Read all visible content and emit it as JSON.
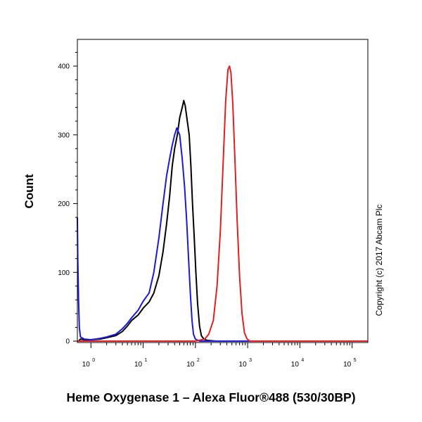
{
  "chart_data": {
    "type": "line",
    "title": "Heme Oxygenase 1 – Alexa Fluor®488 (530/30BP)",
    "ylabel": "Count",
    "xlabel": "",
    "x_scale": "log",
    "xlim": [
      0.55,
      200000
    ],
    "ylim": [
      0,
      420
    ],
    "x_ticks": [
      {
        "base": "10",
        "exp": "0",
        "value": 1
      },
      {
        "base": "10",
        "exp": "1",
        "value": 10
      },
      {
        "base": "10",
        "exp": "2",
        "value": 100
      },
      {
        "base": "10",
        "exp": "3",
        "value": 1000
      },
      {
        "base": "10",
        "exp": "4",
        "value": 10000
      },
      {
        "base": "10",
        "exp": "5",
        "value": 100000
      }
    ],
    "y_ticks": [
      "0",
      "100",
      "200",
      "300",
      "400"
    ],
    "grid": false,
    "annotation": "Copyright (c) 2017 Abcam Plc",
    "series": [
      {
        "color": "#000000",
        "points": [
          [
            0.58,
            0
          ],
          [
            0.63,
            3
          ],
          [
            0.75,
            2
          ],
          [
            1.0,
            2
          ],
          [
            1.5,
            3
          ],
          [
            2.0,
            5
          ],
          [
            3.0,
            8
          ],
          [
            4.0,
            14
          ],
          [
            5.0,
            22
          ],
          [
            6.0,
            30
          ],
          [
            8.0,
            38
          ],
          [
            10.0,
            48
          ],
          [
            13.0,
            57
          ],
          [
            16.0,
            70
          ],
          [
            20.0,
            95
          ],
          [
            24.0,
            130
          ],
          [
            28.0,
            170
          ],
          [
            32.0,
            210
          ],
          [
            36.0,
            255
          ],
          [
            40.0,
            280
          ],
          [
            45.0,
            300
          ],
          [
            50.0,
            325
          ],
          [
            56.0,
            340
          ],
          [
            60.0,
            350
          ],
          [
            64.0,
            342
          ],
          [
            70.0,
            320
          ],
          [
            76.0,
            300
          ],
          [
            82.0,
            255
          ],
          [
            88.0,
            200
          ],
          [
            95.0,
            150
          ],
          [
            102.0,
            100
          ],
          [
            110.0,
            55
          ],
          [
            120.0,
            22
          ],
          [
            130.0,
            8
          ],
          [
            145.0,
            3
          ],
          [
            170.0,
            1
          ],
          [
            250.0,
            0
          ],
          [
            200000,
            0
          ]
        ]
      },
      {
        "color": "#1a1ad6",
        "points": [
          [
            0.55,
            180
          ],
          [
            0.56,
            120
          ],
          [
            0.58,
            60
          ],
          [
            0.6,
            20
          ],
          [
            0.63,
            6
          ],
          [
            0.75,
            3
          ],
          [
            1.0,
            2
          ],
          [
            1.5,
            4
          ],
          [
            2.0,
            6
          ],
          [
            3.0,
            10
          ],
          [
            4.0,
            18
          ],
          [
            5.0,
            26
          ],
          [
            6.0,
            34
          ],
          [
            8.0,
            45
          ],
          [
            10.0,
            58
          ],
          [
            13.0,
            70
          ],
          [
            16.0,
            100
          ],
          [
            20.0,
            150
          ],
          [
            24.0,
            200
          ],
          [
            28.0,
            240
          ],
          [
            32.0,
            265
          ],
          [
            36.0,
            285
          ],
          [
            40.0,
            300
          ],
          [
            44.0,
            310
          ],
          [
            50.0,
            300
          ],
          [
            56.0,
            265
          ],
          [
            62.0,
            225
          ],
          [
            68.0,
            175
          ],
          [
            74.0,
            120
          ],
          [
            80.0,
            70
          ],
          [
            86.0,
            30
          ],
          [
            92.0,
            10
          ],
          [
            100.0,
            3
          ],
          [
            120.0,
            0
          ],
          [
            200000,
            0
          ]
        ]
      },
      {
        "color": "#e02020",
        "points": [
          [
            0.55,
            0
          ],
          [
            100.0,
            0
          ],
          [
            150.0,
            3
          ],
          [
            180.0,
            10
          ],
          [
            220.0,
            30
          ],
          [
            260.0,
            80
          ],
          [
            300.0,
            160
          ],
          [
            340.0,
            260
          ],
          [
            380.0,
            350
          ],
          [
            420.0,
            395
          ],
          [
            450.0,
            400
          ],
          [
            480.0,
            390
          ],
          [
            520.0,
            345
          ],
          [
            570.0,
            265
          ],
          [
            630.0,
            175
          ],
          [
            700.0,
            95
          ],
          [
            780.0,
            40
          ],
          [
            870.0,
            12
          ],
          [
            980.0,
            3
          ],
          [
            1100.0,
            0
          ],
          [
            200000,
            0
          ]
        ]
      }
    ]
  }
}
